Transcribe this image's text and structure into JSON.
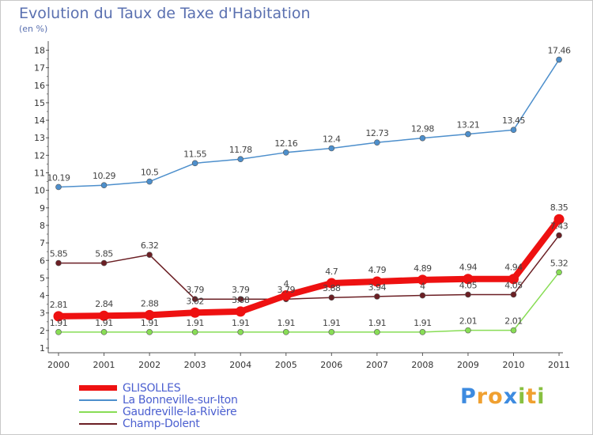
{
  "header": {
    "title": "Evolution du Taux de Taxe d'Habitation",
    "unit": "(en %)"
  },
  "chart_data": {
    "type": "line",
    "x": [
      "2000",
      "2001",
      "2002",
      "2003",
      "2004",
      "2005",
      "2006",
      "2007",
      "2008",
      "2009",
      "2010",
      "2011"
    ],
    "ylim": [
      1,
      18
    ],
    "yticks": [
      "1",
      "2",
      "3",
      "4",
      "5",
      "6",
      "7",
      "8",
      "9",
      "10",
      "11",
      "12",
      "13",
      "14",
      "15",
      "16",
      "17",
      "18"
    ],
    "grid": false,
    "legend_position": "bottom-left",
    "series": [
      {
        "name": "GLISOLLES",
        "color": "#ee1111",
        "values": [
          2.81,
          2.84,
          2.88,
          3.02,
          3.08,
          4,
          4.7,
          4.79,
          4.89,
          4.94,
          4.94,
          8.35
        ],
        "labels": [
          "2.81",
          "2.84",
          "2.88",
          "3.02",
          "3.08",
          "4",
          "4.7",
          "4.79",
          "4.89",
          "4.94",
          "4.94",
          "8.35"
        ]
      },
      {
        "name": "La Bonneville-sur-Iton",
        "color": "#4d8fcc",
        "values": [
          10.19,
          10.29,
          10.5,
          11.55,
          11.78,
          12.16,
          12.4,
          12.73,
          12.98,
          13.21,
          13.45,
          17.46
        ],
        "labels": [
          "10.19",
          "10.29",
          "10.5",
          "11.55",
          "11.78",
          "12.16",
          "12.4",
          "12.73",
          "12.98",
          "13.21",
          "13.45",
          "17.46"
        ]
      },
      {
        "name": "Gaudreville-la-Rivière",
        "color": "#88dd55",
        "values": [
          1.91,
          1.91,
          1.91,
          1.91,
          1.91,
          1.91,
          1.91,
          1.91,
          1.91,
          2.01,
          2.01,
          5.32
        ],
        "labels": [
          "1.91",
          "1.91",
          "1.91",
          "1.91",
          "1.91",
          "1.91",
          "1.91",
          "1.91",
          "1.91",
          "2.01",
          "2.01",
          "5.32"
        ]
      },
      {
        "name": "Champ-Dolent",
        "color": "#6b1f24",
        "values": [
          5.85,
          5.85,
          6.32,
          3.79,
          3.79,
          3.79,
          3.88,
          3.94,
          4,
          4.05,
          4.05,
          7.43
        ],
        "labels": [
          "5.85",
          "5.85",
          "6.32",
          "3.79",
          "3.79",
          "3.79",
          "3.88",
          "3.94",
          "4",
          "4.05",
          "4.05",
          "7.43"
        ]
      }
    ]
  },
  "logo": {
    "letters": [
      "P",
      "r",
      "o",
      "x",
      "i",
      "t",
      "i"
    ],
    "colors": [
      "#3d8be0",
      "#f0a030",
      "#f0a030",
      "#3d8be0",
      "#88c040",
      "#f0a030",
      "#88c040"
    ]
  }
}
